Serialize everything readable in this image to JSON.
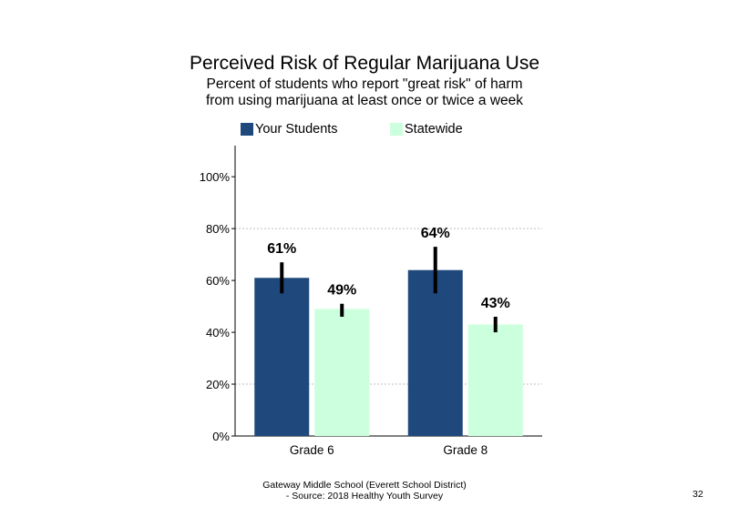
{
  "chart_data": {
    "type": "bar",
    "title": "Perceived Risk of Regular Marijuana Use",
    "subtitle_lines": [
      "Percent of students who report \"great risk\" of harm",
      "from using marijuana at least once or twice a week"
    ],
    "categories": [
      "Grade 6",
      "Grade 8"
    ],
    "series": [
      {
        "name": "Your Students",
        "color": "#1F497D",
        "values": [
          61,
          64
        ],
        "labels": [
          "61%",
          "64%"
        ],
        "error_low": [
          55,
          55
        ],
        "error_high": [
          67,
          73
        ]
      },
      {
        "name": "Statewide",
        "color": "#CCFFDD",
        "values": [
          49,
          43
        ],
        "labels": [
          "49%",
          "43%"
        ],
        "error_low": [
          46,
          40
        ],
        "error_high": [
          51,
          46
        ]
      }
    ],
    "yticks": [
      "0%",
      "20%",
      "40%",
      "60%",
      "80%",
      "100%"
    ],
    "ytick_values": [
      0,
      20,
      40,
      60,
      80,
      100
    ],
    "ylim": [
      0,
      112
    ],
    "gridlines": [
      20,
      80
    ],
    "legend_position": "top"
  },
  "footer": {
    "line1": "Gateway Middle School (Everett School District)",
    "line2": "- Source: 2018 Healthy Youth Survey",
    "page_number": "32"
  }
}
